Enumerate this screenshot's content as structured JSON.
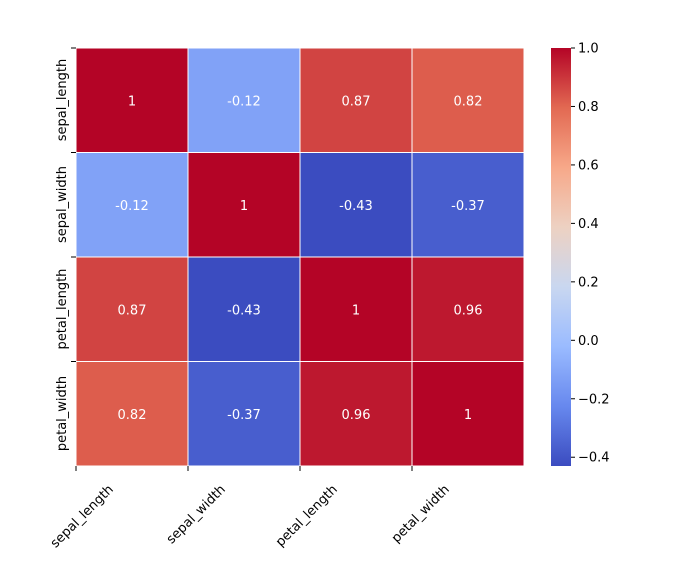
{
  "chart_data": {
    "type": "heatmap",
    "title": "",
    "xlabel": "",
    "ylabel": "",
    "x_labels": [
      "sepal_length",
      "sepal_width",
      "petal_length",
      "petal_width"
    ],
    "y_labels": [
      "sepal_length",
      "sepal_width",
      "petal_length",
      "petal_width"
    ],
    "values": [
      [
        1.0,
        -0.12,
        0.87,
        0.82
      ],
      [
        -0.12,
        1.0,
        -0.43,
        -0.37
      ],
      [
        0.87,
        -0.43,
        1.0,
        0.96
      ],
      [
        0.82,
        -0.37,
        0.96,
        1.0
      ]
    ],
    "annotations": [
      [
        "1",
        "-0.12",
        "0.87",
        "0.82"
      ],
      [
        "-0.12",
        "1",
        "-0.43",
        "-0.37"
      ],
      [
        "0.87",
        "-0.43",
        "1",
        "0.96"
      ],
      [
        "0.82",
        "-0.37",
        "0.96",
        "1"
      ]
    ],
    "colormap": "coolwarm",
    "vmin": -0.43,
    "vmax": 1.0,
    "colorbar_ticks": [
      1.0,
      0.8,
      0.6,
      0.4,
      0.2,
      0.0,
      -0.2,
      -0.4
    ],
    "colorbar_tick_labels": [
      "1.0",
      "0.8",
      "0.6",
      "0.4",
      "0.2",
      "0.0",
      "−0.2",
      "−0.4"
    ],
    "colorbar_stops": [
      "#3b4cc0",
      "#6788ee",
      "#9abbff",
      "#c9d7f0",
      "#edd1c2",
      "#f7a889",
      "#e26952",
      "#b40426"
    ],
    "cell_text_color": "#ffffff",
    "cell_border_color": "#ffffff"
  }
}
